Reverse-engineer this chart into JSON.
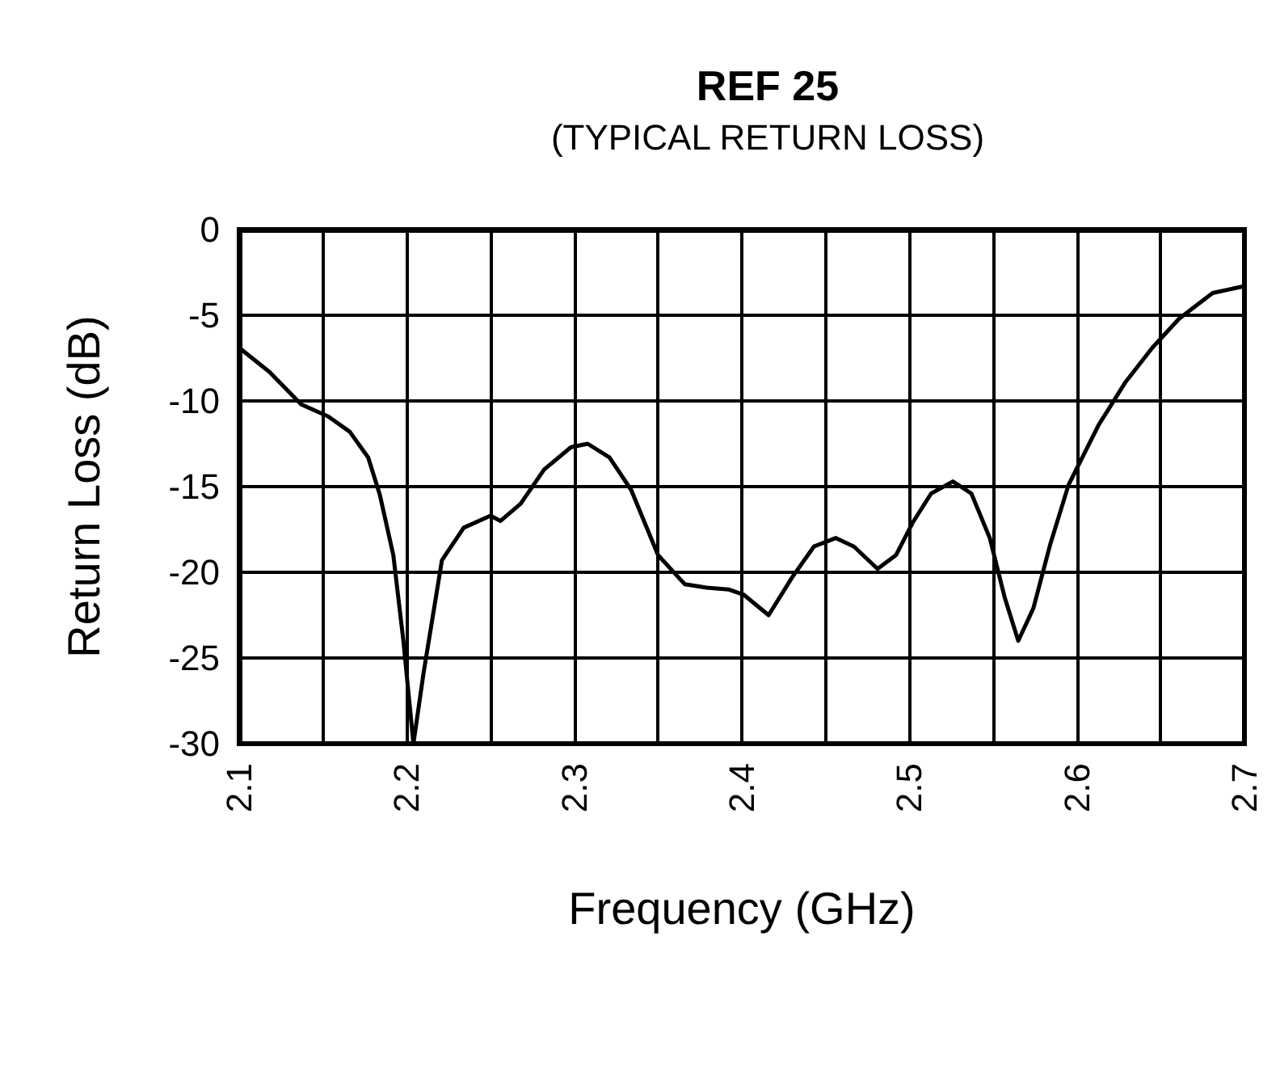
{
  "chart_data": {
    "type": "line",
    "title": "REF 25",
    "subtitle": "(TYPICAL RETURN LOSS)",
    "xlabel": "Frequency (GHz)",
    "ylabel": "Return Loss (dB)",
    "series": [
      {
        "color": "#000000",
        "x": [
          2.1,
          2.118,
          2.137,
          2.153,
          2.166,
          2.177,
          2.184,
          2.192,
          2.198,
          2.204,
          2.21,
          2.221,
          2.234,
          2.25,
          2.256,
          2.268,
          2.282,
          2.298,
          2.308,
          2.321,
          2.334,
          2.35,
          2.366,
          2.379,
          2.392,
          2.401,
          2.416,
          2.43,
          2.443,
          2.456,
          2.467,
          2.481,
          2.492,
          2.502,
          2.513,
          2.526,
          2.537,
          2.548,
          2.557,
          2.565,
          2.574,
          2.584,
          2.595,
          2.613,
          2.629,
          2.645,
          2.661,
          2.681,
          2.7
        ],
        "values": [
          -6.9,
          -8.3,
          -10.2,
          -10.9,
          -11.8,
          -13.3,
          -15.5,
          -19,
          -24,
          -30,
          -25.9,
          -19.3,
          -17.4,
          -16.7,
          -17,
          -16,
          -14,
          -12.7,
          -12.5,
          -13.3,
          -15.2,
          -19,
          -20.7,
          -20.9,
          -21,
          -21.3,
          -22.5,
          -20.3,
          -18.5,
          -18,
          -18.5,
          -19.8,
          -19,
          -17.1,
          -15.4,
          -14.7,
          -15.4,
          -18,
          -21.5,
          -24,
          -22.1,
          -18.4,
          -14.9,
          -11.4,
          -8.9,
          -6.9,
          -5.2,
          -3.7,
          -3.3
        ]
      }
    ],
    "xlim": [
      2.1,
      2.7
    ],
    "xticks": [
      2.1,
      {
        "value": 2.15,
        "label": null
      },
      2.2,
      {
        "value": 2.25,
        "label": null
      },
      2.3,
      {
        "value": 2.35,
        "label": null
      },
      2.4,
      {
        "value": 2.45,
        "label": null
      },
      2.5,
      {
        "value": 2.55,
        "label": null
      },
      2.6,
      {
        "value": 2.65,
        "label": null
      },
      2.7
    ],
    "ylim": [
      -30,
      0
    ],
    "yticks": [
      -30,
      -25,
      -20,
      -15,
      -10,
      -5,
      0
    ],
    "grid": true,
    "marker": "none",
    "line_style": "solid"
  }
}
